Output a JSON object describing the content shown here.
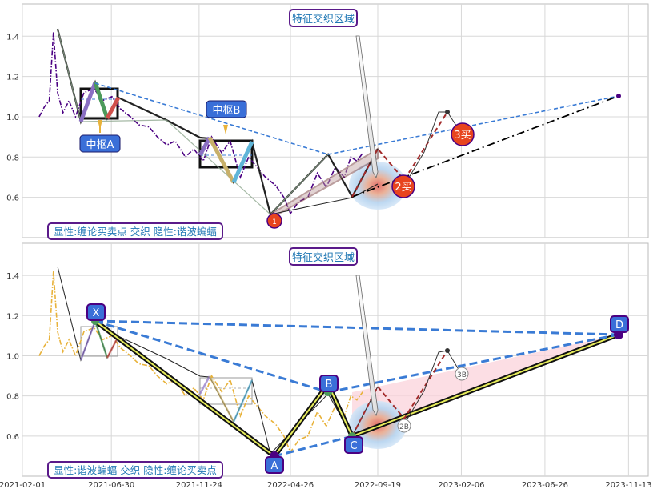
{
  "chart_data": [
    {
      "type": "line",
      "panel": "top",
      "ylim": [
        0.4,
        1.56
      ],
      "yticks": [
        "0.6",
        "0.8",
        "1.0",
        "1.2",
        "1.4"
      ],
      "grid": true,
      "colors": {
        "price": "#4b0082",
        "box": "#000000",
        "trend": "#3a7bd5",
        "dashdot": "#000000",
        "highlight": "#b22222"
      },
      "series": [
        {
          "x": [
            "2021-03-01",
            "2021-03-10",
            "2021-03-18",
            "2021-03-25",
            "2021-04-01",
            "2021-04-10",
            "2021-04-20",
            "2021-05-01",
            "2021-05-15",
            "2021-06-01",
            "2021-06-15",
            "2021-07-01",
            "2021-07-15",
            "2021-08-01",
            "2021-08-15",
            "2021-09-01",
            "2021-09-15",
            "2021-10-01",
            "2021-10-15",
            "2021-11-01",
            "2021-11-15",
            "2021-12-01",
            "2021-12-15",
            "2022-01-01",
            "2022-01-15",
            "2022-02-01",
            "2022-02-15",
            "2022-03-01",
            "2022-03-15",
            "2022-04-01",
            "2022-04-15",
            "2022-04-26",
            "2022-05-10",
            "2022-05-25",
            "2022-06-10",
            "2022-06-25",
            "2022-07-10",
            "2022-07-25",
            "2022-08-05",
            "2022-08-15",
            "2022-08-25"
          ],
          "values": [
            1.0,
            1.05,
            1.08,
            1.42,
            1.12,
            1.02,
            1.08,
            1.0,
            1.12,
            1.14,
            1.08,
            1.1,
            1.04,
            1.0,
            0.96,
            0.95,
            0.9,
            0.86,
            0.88,
            0.8,
            0.84,
            0.78,
            0.9,
            0.82,
            0.88,
            0.7,
            0.8,
            0.75,
            0.7,
            0.66,
            0.6,
            0.52,
            0.58,
            0.6,
            0.72,
            0.65,
            0.75,
            0.7,
            0.8,
            0.78,
            0.82
          ]
        }
      ],
      "annotations": {
        "title_box": "特征交织区域",
        "zs_a": "中枢A",
        "zs_b": "中枢B",
        "buy1": "1",
        "buy2": "2买",
        "buy3": "3买",
        "legend": "显性:缠论买卖点 交织 隐性:谐波蝙蝠"
      }
    },
    {
      "type": "line",
      "panel": "bottom",
      "ylim": [
        0.4,
        1.56
      ],
      "yticks": [
        "0.6",
        "0.8",
        "1.0",
        "1.2",
        "1.4"
      ],
      "xticks": [
        "2021-02-01",
        "2021-06-30",
        "2021-11-24",
        "2022-04-26",
        "2022-09-19",
        "2023-02-06",
        "2023-06-26",
        "2023-11-13"
      ],
      "grid": true,
      "colors": {
        "price": "#e8b23a",
        "pattern": "#3a7bd5",
        "point": "#4b0082",
        "shade": "#fbd3db"
      },
      "series": [
        {
          "x": [
            "2021-03-01",
            "2021-03-10",
            "2021-03-18",
            "2021-03-25",
            "2021-04-01",
            "2021-04-10",
            "2021-04-20",
            "2021-05-01",
            "2021-05-15",
            "2021-06-01",
            "2021-06-15",
            "2021-07-01",
            "2021-07-15",
            "2021-08-01",
            "2021-08-15",
            "2021-09-01",
            "2021-09-15",
            "2021-10-01",
            "2021-10-15",
            "2021-11-01",
            "2021-11-15",
            "2021-12-01",
            "2021-12-15",
            "2022-01-01",
            "2022-01-15",
            "2022-02-01",
            "2022-02-15",
            "2022-03-01",
            "2022-03-15",
            "2022-04-01",
            "2022-04-15",
            "2022-04-26",
            "2022-05-10",
            "2022-05-25",
            "2022-06-10",
            "2022-06-25",
            "2022-07-10",
            "2022-07-25",
            "2022-08-05",
            "2022-08-15",
            "2022-08-25"
          ],
          "values": [
            1.0,
            1.05,
            1.08,
            1.42,
            1.12,
            1.02,
            1.08,
            1.0,
            1.12,
            1.14,
            1.08,
            1.1,
            1.04,
            1.0,
            0.96,
            0.95,
            0.9,
            0.86,
            0.88,
            0.8,
            0.84,
            0.78,
            0.9,
            0.82,
            0.88,
            0.7,
            0.8,
            0.75,
            0.7,
            0.66,
            0.6,
            0.52,
            0.58,
            0.6,
            0.72,
            0.65,
            0.75,
            0.7,
            0.8,
            0.78,
            0.82
          ]
        }
      ],
      "points": [
        {
          "label": "X",
          "date": "2021-06-01",
          "value": 1.17
        },
        {
          "label": "A",
          "date": "2022-04-26",
          "value": 0.5
        },
        {
          "label": "B",
          "date": "2022-08-15",
          "value": 0.81
        },
        {
          "label": "C",
          "date": "2022-09-05",
          "value": 0.61
        },
        {
          "label": "D",
          "date": "2023-11-28",
          "value": 1.1
        }
      ],
      "annotations": {
        "title_box": "特征交织区域",
        "b2": "2B",
        "b3": "3B",
        "legend": "显性:谐波蝙蝠 交织 隐性:缠论买卖点"
      }
    }
  ]
}
